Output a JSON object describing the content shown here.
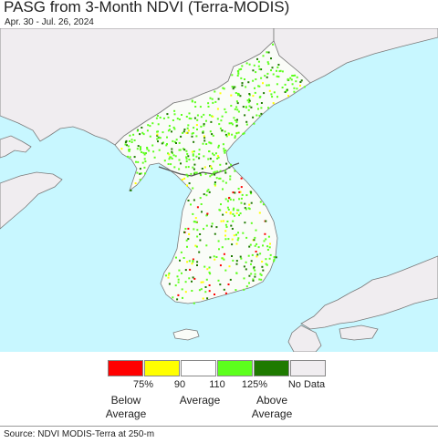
{
  "header": {
    "title": "PASG from 3-Month NDVI (Terra-MODIS)",
    "date_range": "Apr. 30 - Jul. 26, 2024"
  },
  "map": {
    "colors": {
      "sea": "#c8f7ff",
      "neighbor_land": "#f0edf0",
      "land_base": "#fafcf8",
      "border": "#7a7a7a"
    }
  },
  "legend": {
    "categories": [
      {
        "color": "#ff0000"
      },
      {
        "color": "#ffff00"
      },
      {
        "color": "#ffffff"
      },
      {
        "color": "#5cff1c"
      },
      {
        "color": "#1e7a00"
      },
      {
        "color": "#f0edf0"
      }
    ],
    "tick_labels": [
      "75%",
      "90",
      "110",
      "125%",
      "No Data"
    ],
    "captions": {
      "below": "Below\nAverage",
      "average": "Average",
      "above": "Above\nAverage"
    }
  },
  "footer": {
    "source": "Source: NDVI MODIS-Terra at 250-m"
  }
}
